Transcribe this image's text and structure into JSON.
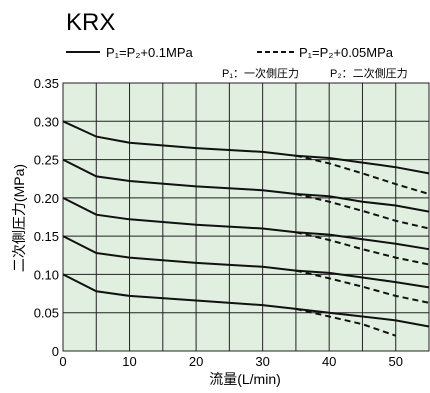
{
  "title": "KRX",
  "legend": {
    "solid_label": "P₁=P₂+0.1MPa",
    "dashed_label": "P₁=P₂+0.05MPa",
    "note_p1": "P₁：一次側圧力",
    "note_p2": "P₂：二次側圧力"
  },
  "colors": {
    "plot_background": "#e0efdf",
    "grid": "#222222",
    "line": "#111111"
  },
  "chart_data": {
    "type": "line",
    "title": "KRX",
    "xlabel": "流量(L/min)",
    "ylabel": "二次側圧力(MPa)",
    "xlim": [
      0,
      55
    ],
    "ylim": [
      0,
      0.35
    ],
    "x_ticks": [
      "0",
      "10",
      "20",
      "30",
      "40",
      "50"
    ],
    "y_ticks": [
      "0",
      "0.05",
      "0.10",
      "0.15",
      "0.20",
      "0.25",
      "0.30",
      "0.35"
    ],
    "grid": true,
    "series": [
      {
        "name": "P₁=P₂+0.1MPa",
        "style": "solid",
        "points": [
          [
            0,
            0.3
          ],
          [
            5,
            0.28
          ],
          [
            10,
            0.272
          ],
          [
            20,
            0.265
          ],
          [
            30,
            0.26
          ],
          [
            35,
            0.255
          ],
          [
            40,
            0.252
          ],
          [
            45,
            0.246
          ],
          [
            50,
            0.24
          ],
          [
            55,
            0.232
          ]
        ]
      },
      {
        "name": "P₁=P₂+0.1MPa",
        "style": "solid",
        "points": [
          [
            0,
            0.25
          ],
          [
            5,
            0.228
          ],
          [
            10,
            0.222
          ],
          [
            20,
            0.215
          ],
          [
            30,
            0.21
          ],
          [
            35,
            0.205
          ],
          [
            40,
            0.202
          ],
          [
            45,
            0.195
          ],
          [
            50,
            0.19
          ],
          [
            55,
            0.182
          ]
        ]
      },
      {
        "name": "P₁=P₂+0.1MPa",
        "style": "solid",
        "points": [
          [
            0,
            0.2
          ],
          [
            5,
            0.178
          ],
          [
            10,
            0.172
          ],
          [
            20,
            0.165
          ],
          [
            30,
            0.16
          ],
          [
            35,
            0.155
          ],
          [
            40,
            0.152
          ],
          [
            45,
            0.146
          ],
          [
            50,
            0.14
          ],
          [
            55,
            0.133
          ]
        ]
      },
      {
        "name": "P₁=P₂+0.1MPa",
        "style": "solid",
        "points": [
          [
            0,
            0.15
          ],
          [
            5,
            0.128
          ],
          [
            10,
            0.122
          ],
          [
            20,
            0.115
          ],
          [
            30,
            0.11
          ],
          [
            35,
            0.105
          ],
          [
            40,
            0.102
          ],
          [
            45,
            0.096
          ],
          [
            50,
            0.09
          ],
          [
            55,
            0.083
          ]
        ]
      },
      {
        "name": "P₁=P₂+0.1MPa",
        "style": "solid",
        "points": [
          [
            0,
            0.1
          ],
          [
            5,
            0.078
          ],
          [
            10,
            0.072
          ],
          [
            20,
            0.066
          ],
          [
            30,
            0.06
          ],
          [
            35,
            0.055
          ],
          [
            40,
            0.05
          ],
          [
            45,
            0.045
          ],
          [
            50,
            0.04
          ],
          [
            55,
            0.032
          ]
        ]
      },
      {
        "name": "P₁=P₂+0.05MPa",
        "style": "dashed",
        "points": [
          [
            35,
            0.255
          ],
          [
            40,
            0.245
          ],
          [
            45,
            0.232
          ],
          [
            50,
            0.218
          ],
          [
            55,
            0.205
          ]
        ]
      },
      {
        "name": "P₁=P₂+0.05MPa",
        "style": "dashed",
        "points": [
          [
            35,
            0.205
          ],
          [
            40,
            0.195
          ],
          [
            45,
            0.183
          ],
          [
            50,
            0.17
          ],
          [
            55,
            0.16
          ]
        ]
      },
      {
        "name": "P₁=P₂+0.05MPa",
        "style": "dashed",
        "points": [
          [
            35,
            0.155
          ],
          [
            40,
            0.145
          ],
          [
            45,
            0.133
          ],
          [
            50,
            0.122
          ],
          [
            55,
            0.113
          ]
        ]
      },
      {
        "name": "P₁=P₂+0.05MPa",
        "style": "dashed",
        "points": [
          [
            35,
            0.105
          ],
          [
            40,
            0.095
          ],
          [
            45,
            0.084
          ],
          [
            50,
            0.072
          ],
          [
            55,
            0.063
          ]
        ]
      },
      {
        "name": "P₁=P₂+0.05MPa",
        "style": "dashed",
        "points": [
          [
            35,
            0.055
          ],
          [
            40,
            0.045
          ],
          [
            45,
            0.035
          ],
          [
            50,
            0.02
          ]
        ]
      }
    ]
  }
}
